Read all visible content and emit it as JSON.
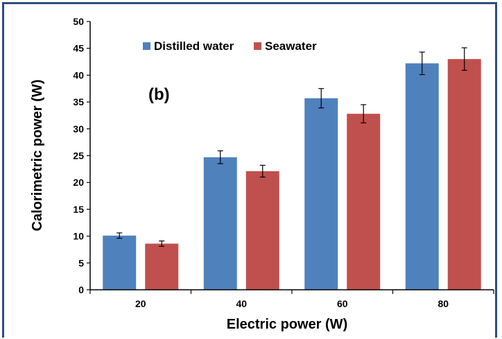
{
  "chart_data": {
    "type": "bar",
    "annotation": "(b)",
    "xlabel": "Electric power (W)",
    "ylabel": "Calorimetric power (W)",
    "categories": [
      "20",
      "40",
      "60",
      "80"
    ],
    "ylim": [
      0,
      50
    ],
    "yticks": [
      "0",
      "5",
      "10",
      "15",
      "20",
      "25",
      "30",
      "35",
      "40",
      "45",
      "50"
    ],
    "grid": false,
    "legend_position": "top-left",
    "series": [
      {
        "name": "Distilled water",
        "color": "#4f81bd",
        "values": [
          10.1,
          24.7,
          35.7,
          42.2
        ],
        "errors": [
          0.5,
          1.2,
          1.8,
          2.1
        ]
      },
      {
        "name": "Seawater",
        "color": "#c0504d",
        "values": [
          8.6,
          22.1,
          32.8,
          43.0
        ],
        "errors": [
          0.5,
          1.1,
          1.7,
          2.1
        ]
      }
    ]
  }
}
